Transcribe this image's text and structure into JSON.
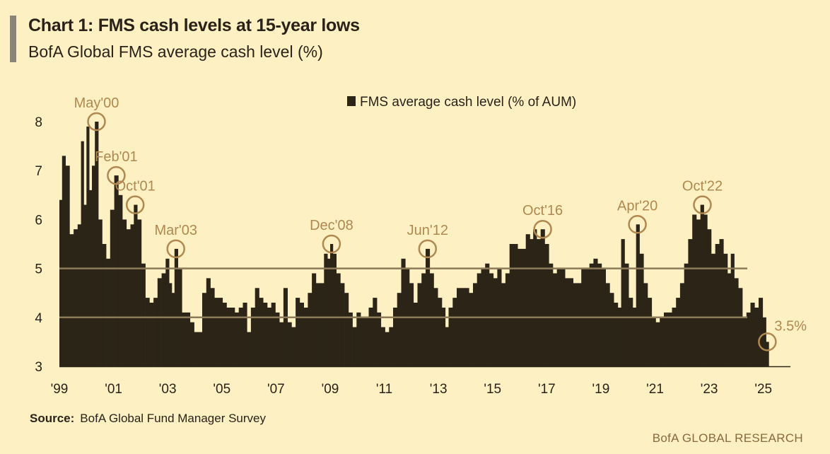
{
  "header": {
    "title": "Chart 1: FMS cash levels at 15-year lows",
    "subtitle": "BofA Global FMS average cash level (%)"
  },
  "footer": {
    "source_label": "Source:",
    "source_text": "BofA Global Fund Manager Survey",
    "brand": "BofA GLOBAL RESEARCH"
  },
  "colors": {
    "background": "#fdf1c4",
    "bars": "#2b2417",
    "annotation": "#b08850",
    "reference_lines": "#8c7a58"
  },
  "chart_data": {
    "type": "bar",
    "title": "Chart 1: FMS cash levels at 15-year lows",
    "subtitle": "BofA Global FMS average cash level (%)",
    "legend": {
      "label": "FMS average cash level (% of AUM)",
      "placement": "top-center"
    },
    "xlabel": "",
    "ylabel": "",
    "xlim": [
      1999.0,
      2026.0
    ],
    "ylim": [
      3,
      8
    ],
    "yticks": [
      3,
      4,
      5,
      6,
      7,
      8
    ],
    "xticks": [
      {
        "label": "'99",
        "value": 1999
      },
      {
        "label": "'01",
        "value": 2001
      },
      {
        "label": "'03",
        "value": 2003
      },
      {
        "label": "'05",
        "value": 2005
      },
      {
        "label": "'07",
        "value": 2007
      },
      {
        "label": "'09",
        "value": 2009
      },
      {
        "label": "'11",
        "value": 2011
      },
      {
        "label": "'13",
        "value": 2013
      },
      {
        "label": "'15",
        "value": 2015
      },
      {
        "label": "'17",
        "value": 2017
      },
      {
        "label": "'19",
        "value": 2019
      },
      {
        "label": "'21",
        "value": 2021
      },
      {
        "label": "'23",
        "value": 2023
      },
      {
        "label": "'25",
        "value": 2025
      }
    ],
    "reference_lines": [
      5.0,
      4.0
    ],
    "series": [
      {
        "name": "FMS average cash level (% of AUM)",
        "points": [
          [
            1999.05,
            6.4
          ],
          [
            1999.15,
            7.3
          ],
          [
            1999.3,
            7.1
          ],
          [
            1999.45,
            5.7
          ],
          [
            1999.6,
            5.8
          ],
          [
            1999.75,
            5.9
          ],
          [
            1999.85,
            7.6
          ],
          [
            1999.95,
            6.3
          ],
          [
            2000.05,
            7.9
          ],
          [
            2000.15,
            6.6
          ],
          [
            2000.25,
            7.1
          ],
          [
            2000.37,
            8.0
          ],
          [
            2000.5,
            6.0
          ],
          [
            2000.65,
            5.5
          ],
          [
            2000.8,
            5.2
          ],
          [
            2000.95,
            6.2
          ],
          [
            2001.1,
            6.9
          ],
          [
            2001.25,
            6.5
          ],
          [
            2001.4,
            6.0
          ],
          [
            2001.55,
            5.8
          ],
          [
            2001.7,
            5.9
          ],
          [
            2001.8,
            6.3
          ],
          [
            2001.95,
            6.0
          ],
          [
            2002.1,
            5.1
          ],
          [
            2002.25,
            4.4
          ],
          [
            2002.4,
            4.3
          ],
          [
            2002.55,
            4.4
          ],
          [
            2002.7,
            4.8
          ],
          [
            2002.85,
            4.9
          ],
          [
            2003.0,
            5.2
          ],
          [
            2003.1,
            4.7
          ],
          [
            2003.2,
            4.5
          ],
          [
            2003.3,
            5.4
          ],
          [
            2003.45,
            5.0
          ],
          [
            2003.6,
            4.1
          ],
          [
            2003.75,
            4.1
          ],
          [
            2003.9,
            3.9
          ],
          [
            2004.05,
            3.7
          ],
          [
            2004.2,
            3.7
          ],
          [
            2004.35,
            4.5
          ],
          [
            2004.5,
            4.8
          ],
          [
            2004.65,
            4.6
          ],
          [
            2004.8,
            4.4
          ],
          [
            2004.95,
            4.4
          ],
          [
            2005.1,
            4.3
          ],
          [
            2005.25,
            4.2
          ],
          [
            2005.4,
            4.2
          ],
          [
            2005.55,
            4.1
          ],
          [
            2005.7,
            4.2
          ],
          [
            2005.85,
            4.3
          ],
          [
            2006.0,
            3.7
          ],
          [
            2006.15,
            4.2
          ],
          [
            2006.3,
            4.6
          ],
          [
            2006.45,
            4.4
          ],
          [
            2006.6,
            4.3
          ],
          [
            2006.75,
            4.2
          ],
          [
            2006.9,
            4.3
          ],
          [
            2007.05,
            4.1
          ],
          [
            2007.2,
            3.9
          ],
          [
            2007.35,
            4.6
          ],
          [
            2007.5,
            3.9
          ],
          [
            2007.65,
            3.8
          ],
          [
            2007.8,
            4.4
          ],
          [
            2007.95,
            4.3
          ],
          [
            2008.1,
            4.2
          ],
          [
            2008.25,
            4.5
          ],
          [
            2008.4,
            4.9
          ],
          [
            2008.55,
            4.7
          ],
          [
            2008.7,
            4.7
          ],
          [
            2008.85,
            5.3
          ],
          [
            2008.95,
            5.2
          ],
          [
            2009.05,
            5.5
          ],
          [
            2009.15,
            5.3
          ],
          [
            2009.3,
            4.9
          ],
          [
            2009.45,
            4.7
          ],
          [
            2009.6,
            4.5
          ],
          [
            2009.75,
            4.1
          ],
          [
            2009.9,
            3.8
          ],
          [
            2010.05,
            4.1
          ],
          [
            2010.2,
            4.0
          ],
          [
            2010.35,
            4.0
          ],
          [
            2010.5,
            4.2
          ],
          [
            2010.65,
            4.4
          ],
          [
            2010.8,
            4.1
          ],
          [
            2010.95,
            3.8
          ],
          [
            2011.1,
            3.7
          ],
          [
            2011.25,
            3.8
          ],
          [
            2011.4,
            4.2
          ],
          [
            2011.55,
            4.5
          ],
          [
            2011.7,
            5.2
          ],
          [
            2011.85,
            5.0
          ],
          [
            2012.0,
            4.7
          ],
          [
            2012.15,
            4.3
          ],
          [
            2012.3,
            4.7
          ],
          [
            2012.45,
            4.9
          ],
          [
            2012.6,
            5.4
          ],
          [
            2012.75,
            4.9
          ],
          [
            2012.9,
            4.6
          ],
          [
            2013.05,
            4.4
          ],
          [
            2013.2,
            4.2
          ],
          [
            2013.3,
            3.8
          ],
          [
            2013.45,
            4.2
          ],
          [
            2013.6,
            4.4
          ],
          [
            2013.75,
            4.6
          ],
          [
            2013.9,
            4.6
          ],
          [
            2014.05,
            4.6
          ],
          [
            2014.2,
            4.5
          ],
          [
            2014.35,
            4.7
          ],
          [
            2014.5,
            4.9
          ],
          [
            2014.65,
            5.0
          ],
          [
            2014.8,
            5.1
          ],
          [
            2014.95,
            4.9
          ],
          [
            2015.1,
            4.8
          ],
          [
            2015.25,
            5.0
          ],
          [
            2015.4,
            4.7
          ],
          [
            2015.55,
            4.9
          ],
          [
            2015.7,
            5.5
          ],
          [
            2015.85,
            5.5
          ],
          [
            2016.0,
            5.4
          ],
          [
            2016.15,
            5.4
          ],
          [
            2016.3,
            5.7
          ],
          [
            2016.45,
            5.6
          ],
          [
            2016.55,
            5.8
          ],
          [
            2016.7,
            5.6
          ],
          [
            2016.85,
            5.8
          ],
          [
            2017.0,
            5.5
          ],
          [
            2017.15,
            5.1
          ],
          [
            2017.3,
            4.9
          ],
          [
            2017.45,
            5.0
          ],
          [
            2017.6,
            5.0
          ],
          [
            2017.75,
            4.8
          ],
          [
            2017.9,
            4.8
          ],
          [
            2018.05,
            4.7
          ],
          [
            2018.2,
            4.7
          ],
          [
            2018.35,
            5.0
          ],
          [
            2018.5,
            5.0
          ],
          [
            2018.65,
            5.1
          ],
          [
            2018.8,
            5.2
          ],
          [
            2018.95,
            5.1
          ],
          [
            2019.1,
            5.0
          ],
          [
            2019.25,
            4.7
          ],
          [
            2019.4,
            4.5
          ],
          [
            2019.55,
            4.3
          ],
          [
            2019.7,
            4.2
          ],
          [
            2019.8,
            5.6
          ],
          [
            2019.95,
            5.1
          ],
          [
            2020.1,
            4.4
          ],
          [
            2020.25,
            4.2
          ],
          [
            2020.35,
            5.9
          ],
          [
            2020.5,
            5.3
          ],
          [
            2020.65,
            4.7
          ],
          [
            2020.8,
            4.4
          ],
          [
            2020.95,
            4.0
          ],
          [
            2021.1,
            3.9
          ],
          [
            2021.25,
            4.0
          ],
          [
            2021.4,
            4.1
          ],
          [
            2021.55,
            4.1
          ],
          [
            2021.7,
            4.2
          ],
          [
            2021.85,
            4.4
          ],
          [
            2022.0,
            4.7
          ],
          [
            2022.15,
            5.1
          ],
          [
            2022.3,
            5.6
          ],
          [
            2022.45,
            6.1
          ],
          [
            2022.6,
            6.0
          ],
          [
            2022.75,
            6.3
          ],
          [
            2022.85,
            6.1
          ],
          [
            2023.0,
            5.8
          ],
          [
            2023.15,
            5.3
          ],
          [
            2023.3,
            5.5
          ],
          [
            2023.45,
            5.6
          ],
          [
            2023.6,
            5.3
          ],
          [
            2023.75,
            4.9
          ],
          [
            2023.85,
            5.3
          ],
          [
            2024.0,
            4.8
          ],
          [
            2024.15,
            4.6
          ],
          [
            2024.3,
            4.0
          ],
          [
            2024.45,
            4.1
          ],
          [
            2024.6,
            4.3
          ],
          [
            2024.75,
            4.2
          ],
          [
            2024.9,
            4.4
          ],
          [
            2025.05,
            4.0
          ],
          [
            2025.15,
            3.5
          ]
        ]
      }
    ],
    "annotations": [
      {
        "label": "May'00",
        "x": 2000.37,
        "y": 8.0,
        "side": "above"
      },
      {
        "label": "Feb'01",
        "x": 2001.1,
        "y": 6.9,
        "side": "above"
      },
      {
        "label": "Oct'01",
        "x": 2001.8,
        "y": 6.3,
        "side": "above"
      },
      {
        "label": "Mar'03",
        "x": 2003.3,
        "y": 5.4,
        "side": "above"
      },
      {
        "label": "Dec'08",
        "x": 2009.05,
        "y": 5.5,
        "side": "above"
      },
      {
        "label": "Jun'12",
        "x": 2012.6,
        "y": 5.4,
        "side": "above"
      },
      {
        "label": "Oct'16",
        "x": 2016.85,
        "y": 5.8,
        "side": "above"
      },
      {
        "label": "Apr'20",
        "x": 2020.35,
        "y": 5.9,
        "side": "above"
      },
      {
        "label": "Oct'22",
        "x": 2022.75,
        "y": 6.3,
        "side": "above"
      },
      {
        "label": "3.5%",
        "x": 2025.15,
        "y": 3.5,
        "side": "right"
      }
    ]
  }
}
